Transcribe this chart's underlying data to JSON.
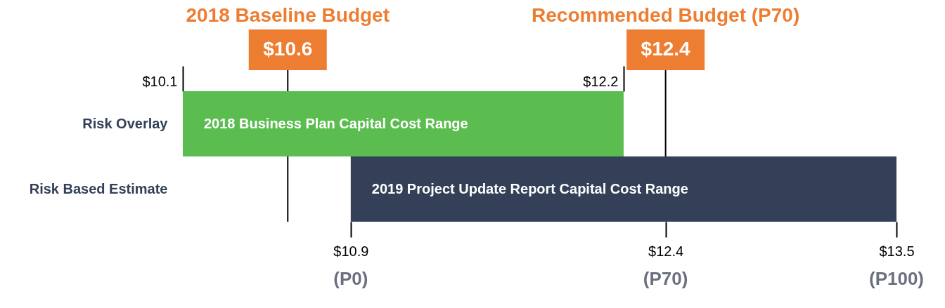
{
  "chart_data": {
    "type": "bar",
    "orientation": "horizontal",
    "categories": [
      "Risk Overlay",
      "Risk Based Estimate"
    ],
    "base": [
      10.1,
      10.9
    ],
    "values": [
      2.1,
      2.6
    ],
    "colors": [
      "#5bbd4f",
      "#334057"
    ],
    "xlim": [
      10.1,
      13.5
    ],
    "x2lim": [
      10.1,
      12.2
    ],
    "xticks": [
      {
        "value": 10.9,
        "label": "$10.9"
      },
      {
        "value": 12.4,
        "label": "$12.4"
      },
      {
        "value": 13.5,
        "label": "$13.5"
      }
    ],
    "x2ticks": [
      {
        "value": 10.1,
        "label": "$10.1"
      },
      {
        "value": 12.2,
        "label": "$12.2"
      }
    ],
    "ref_lines": [
      {
        "axis": "x",
        "value": 10.6,
        "label": "$10.6"
      },
      {
        "axis": "x",
        "value": 12.4,
        "label": "$12.4"
      }
    ],
    "annotations": [
      "2018 Baseline Budget",
      "Recommended Budget (P70)",
      "2018 Business Plan Capital Cost Range",
      "2019 Project Update Report Capital Cost Range",
      "(P0)",
      "(P70)",
      "(P100)"
    ]
  }
}
